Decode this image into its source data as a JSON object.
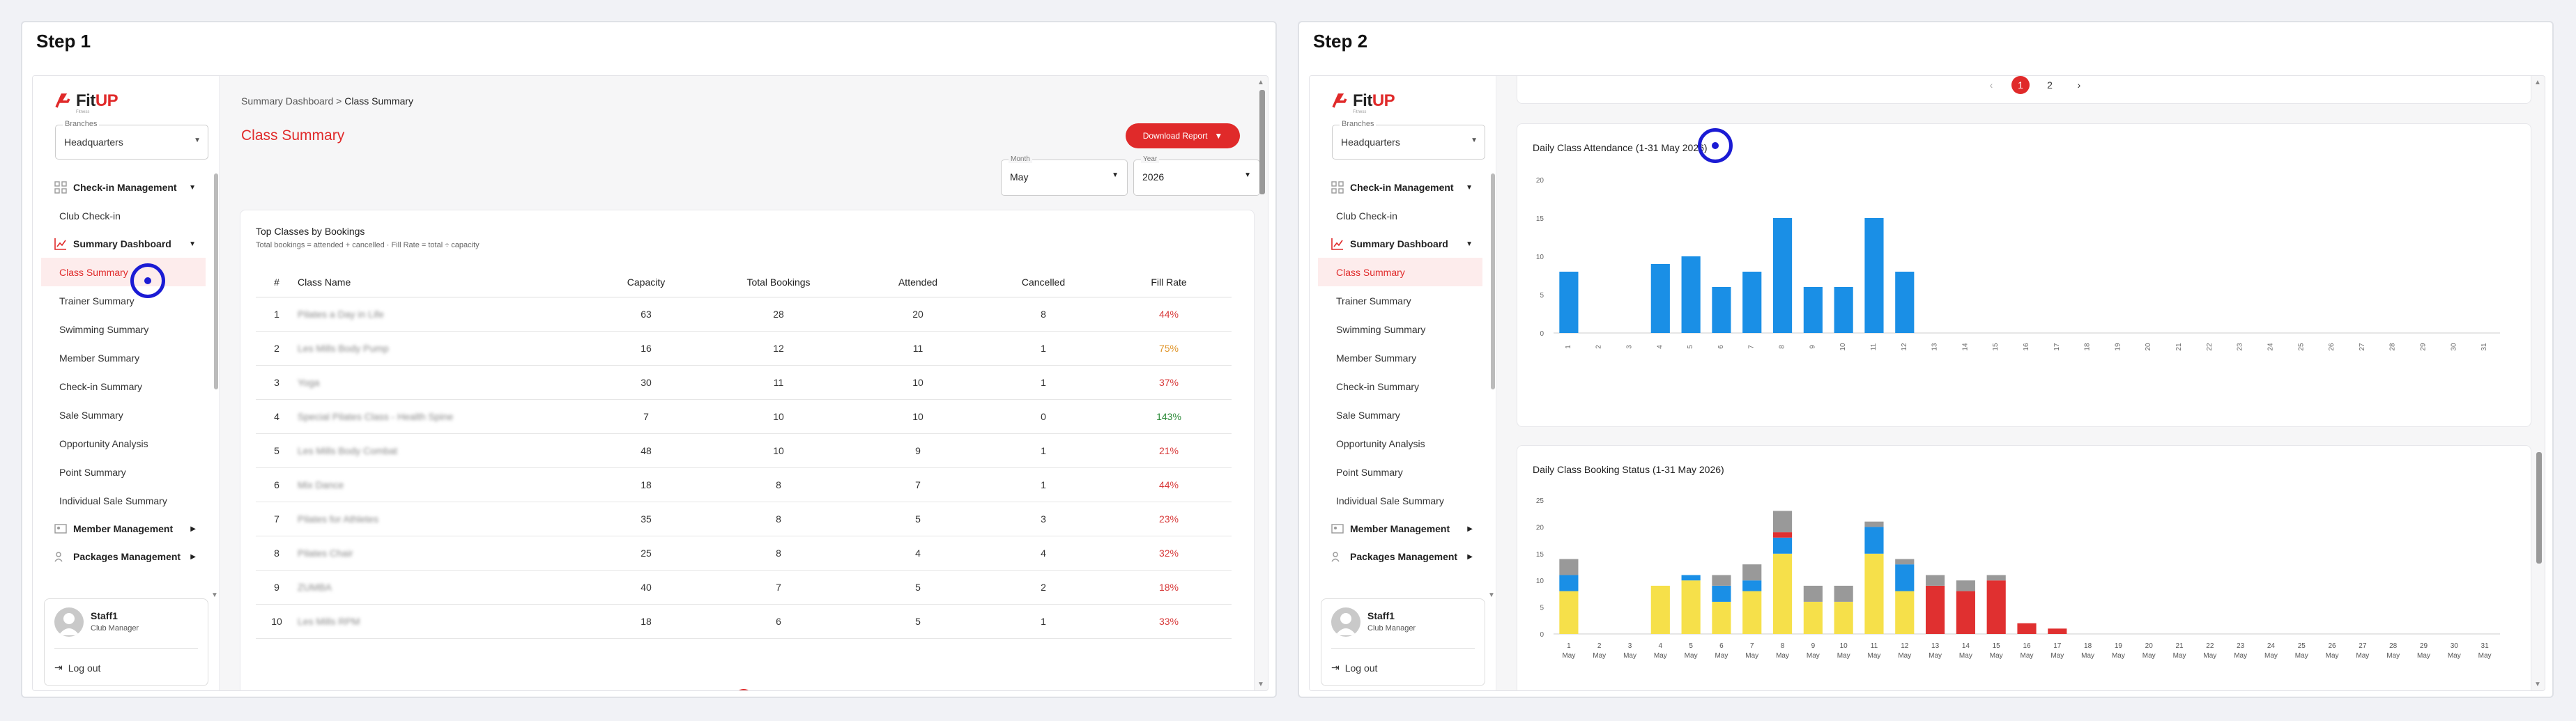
{
  "steps": [
    "Step 1",
    "Step 2"
  ],
  "brand": {
    "name_a": "Fit",
    "name_b": "UP",
    "tagline": "Fitness"
  },
  "branch": {
    "label": "Branches",
    "value": "Headquarters"
  },
  "nav": {
    "checkin_group": "Check-in Management",
    "club_checkin": "Club Check-in",
    "summary_group": "Summary Dashboard",
    "items": [
      "Class Summary",
      "Trainer Summary",
      "Swimming Summary",
      "Member Summary",
      "Check-in Summary",
      "Sale Summary",
      "Opportunity Analysis",
      "Point Summary",
      "Individual Sale Summary"
    ],
    "member_group": "Member Management",
    "packages_group": "Packages Management"
  },
  "user": {
    "name": "Staff1",
    "role": "Club Manager",
    "logout": "Log out"
  },
  "breadcrumb": {
    "parent": "Summary Dashboard",
    "sep": ">",
    "current": "Class Summary"
  },
  "page_title": "Class Summary",
  "download_label": "Download Report",
  "filters": {
    "month_label": "Month",
    "month_value": "May",
    "year_label": "Year",
    "year_value": "2026"
  },
  "top_classes": {
    "title": "Top Classes by Bookings",
    "subtitle": "Total bookings = attended + cancelled · Fill Rate = total ÷ capacity",
    "headers": [
      "#",
      "Class Name",
      "Capacity",
      "Total Bookings",
      "Attended",
      "Cancelled",
      "Fill Rate"
    ],
    "rows": [
      {
        "n": "1",
        "name": "Pilates a Day in Life",
        "cap": "63",
        "total": "28",
        "att": "20",
        "can": "8",
        "fill": "44%",
        "color": "#d83a3a"
      },
      {
        "n": "2",
        "name": "Les Mills Body Pump",
        "cap": "16",
        "total": "12",
        "att": "11",
        "can": "1",
        "fill": "75%",
        "color": "#e0952a"
      },
      {
        "n": "3",
        "name": "Yoga",
        "cap": "30",
        "total": "11",
        "att": "10",
        "can": "1",
        "fill": "37%",
        "color": "#d83a3a"
      },
      {
        "n": "4",
        "name": "Special Pilates Class - Health Spine",
        "cap": "7",
        "total": "10",
        "att": "10",
        "can": "0",
        "fill": "143%",
        "color": "#2e8b3a"
      },
      {
        "n": "5",
        "name": "Les Mills Body Combat",
        "cap": "48",
        "total": "10",
        "att": "9",
        "can": "1",
        "fill": "21%",
        "color": "#d83a3a"
      },
      {
        "n": "6",
        "name": "Mix Dance",
        "cap": "18",
        "total": "8",
        "att": "7",
        "can": "1",
        "fill": "44%",
        "color": "#d83a3a"
      },
      {
        "n": "7",
        "name": "Pilates for Athletes",
        "cap": "35",
        "total": "8",
        "att": "5",
        "can": "3",
        "fill": "23%",
        "color": "#d83a3a"
      },
      {
        "n": "8",
        "name": "Pilates Chair",
        "cap": "25",
        "total": "8",
        "att": "4",
        "can": "4",
        "fill": "32%",
        "color": "#d83a3a"
      },
      {
        "n": "9",
        "name": "ZUMBA",
        "cap": "40",
        "total": "7",
        "att": "5",
        "can": "2",
        "fill": "18%",
        "color": "#d83a3a"
      },
      {
        "n": "10",
        "name": "Les Mills RPM",
        "cap": "18",
        "total": "6",
        "att": "5",
        "can": "1",
        "fill": "33%",
        "color": "#d83a3a"
      }
    ]
  },
  "pager": {
    "prev": "‹",
    "pages": [
      "1",
      "2"
    ],
    "next": "›"
  },
  "attendance_chart": {
    "title": "Daily Class Attendance (1-31 May 2026)"
  },
  "status_chart": {
    "title": "Daily Class Booking Status (1-31 May 2026)"
  },
  "chart_data": [
    {
      "type": "bar",
      "title": "Daily Class Attendance (1-31 May 2026)",
      "categories": [
        "1",
        "2",
        "3",
        "4",
        "5",
        "6",
        "7",
        "8",
        "9",
        "10",
        "11",
        "12",
        "13",
        "14",
        "15",
        "16",
        "17",
        "18",
        "19",
        "20",
        "21",
        "22",
        "23",
        "24",
        "25",
        "26",
        "27",
        "28",
        "29",
        "30",
        "31"
      ],
      "values": [
        8,
        0,
        0,
        9,
        10,
        6,
        8,
        15,
        6,
        6,
        15,
        8,
        0,
        0,
        0,
        0,
        0,
        0,
        0,
        0,
        0,
        0,
        0,
        0,
        0,
        0,
        0,
        0,
        0,
        0,
        0
      ],
      "ylim": [
        0,
        20
      ],
      "yticks": [
        "0",
        "5",
        "10",
        "15",
        "20"
      ],
      "color": "#1a8fe6"
    },
    {
      "type": "bar",
      "stacked": true,
      "title": "Daily Class Booking Status (1-31 May 2026)",
      "categories": [
        "1",
        "2",
        "3",
        "4",
        "5",
        "6",
        "7",
        "8",
        "9",
        "10",
        "11",
        "12",
        "13",
        "14",
        "15",
        "16",
        "17",
        "18",
        "19",
        "20",
        "21",
        "22",
        "23",
        "24",
        "25",
        "26",
        "27",
        "28",
        "29",
        "30",
        "31"
      ],
      "category_sub": "May",
      "ylim": [
        0,
        25
      ],
      "yticks": [
        "0",
        "5",
        "10",
        "15",
        "20",
        "25"
      ],
      "series": [
        {
          "color": "#f6e04a",
          "values": [
            8,
            0,
            0,
            9,
            10,
            6,
            8,
            15,
            6,
            6,
            15,
            8,
            0,
            0,
            0,
            0,
            0,
            0,
            0,
            0,
            0,
            0,
            0,
            0,
            0,
            0,
            0,
            0,
            0,
            0,
            0
          ]
        },
        {
          "color": "#1a8fe6",
          "values": [
            3,
            0,
            0,
            0,
            1,
            3,
            2,
            3,
            0,
            0,
            5,
            5,
            0,
            0,
            0,
            0,
            0,
            0,
            0,
            0,
            0,
            0,
            0,
            0,
            0,
            0,
            0,
            0,
            0,
            0,
            0
          ]
        },
        {
          "color": "#e03030",
          "values": [
            0,
            0,
            0,
            0,
            0,
            0,
            0,
            1,
            0,
            0,
            0,
            0,
            9,
            8,
            10,
            2,
            1,
            0,
            0,
            0,
            0,
            0,
            0,
            0,
            0,
            0,
            0,
            0,
            0,
            0,
            0
          ]
        },
        {
          "color": "#999999",
          "values": [
            3,
            0,
            0,
            0,
            0,
            2,
            3,
            4,
            3,
            3,
            1,
            1,
            2,
            2,
            1,
            0,
            0,
            0,
            0,
            0,
            0,
            0,
            0,
            0,
            0,
            0,
            0,
            0,
            0,
            0,
            0
          ]
        }
      ]
    }
  ]
}
